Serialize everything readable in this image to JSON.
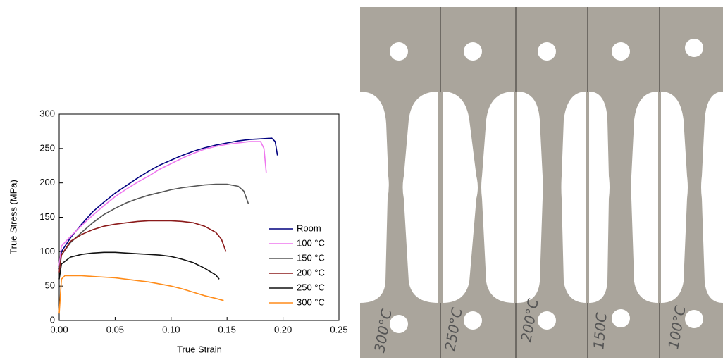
{
  "chart_data": {
    "type": "line",
    "x_label": "True Strain",
    "y_label": "True Stress (MPa)",
    "xlim": [
      0,
      0.25
    ],
    "xticks": [
      {
        "value": 0,
        "label": "0.00"
      },
      0.05,
      {
        "value": 0.1,
        "label": "0.10"
      },
      0.15,
      {
        "value": 0.2,
        "label": "0.20"
      },
      0.25
    ],
    "ylim": [
      0,
      300
    ],
    "yticks": [
      0,
      50,
      100,
      150,
      200,
      250,
      300
    ],
    "grid": false,
    "legend": "lower right",
    "series": [
      {
        "name": "Room",
        "color": "#00007f",
        "x": [
          0,
          0.002,
          0.01,
          0.02,
          0.03,
          0.04,
          0.05,
          0.06,
          0.07,
          0.08,
          0.09,
          0.1,
          0.11,
          0.12,
          0.13,
          0.14,
          0.15,
          0.16,
          0.17,
          0.18,
          0.19,
          0.193,
          0.195
        ],
        "values": [
          75,
          100,
          120,
          140,
          158,
          172,
          185,
          196,
          207,
          217,
          226,
          233,
          240,
          246,
          251,
          255,
          258,
          261,
          263,
          264,
          265,
          260,
          240
        ]
      },
      {
        "name": "100 °C",
        "color": "#ee77ee",
        "x": [
          0,
          0.002,
          0.01,
          0.02,
          0.03,
          0.04,
          0.05,
          0.06,
          0.07,
          0.08,
          0.09,
          0.1,
          0.11,
          0.12,
          0.13,
          0.14,
          0.15,
          0.16,
          0.17,
          0.18,
          0.183,
          0.185
        ],
        "values": [
          80,
          108,
          122,
          138,
          153,
          167,
          180,
          191,
          201,
          210,
          220,
          228,
          236,
          243,
          249,
          253,
          256,
          258,
          260,
          260,
          250,
          215
        ]
      },
      {
        "name": "150 °C",
        "color": "#555555",
        "x": [
          0,
          0.002,
          0.01,
          0.02,
          0.03,
          0.04,
          0.05,
          0.06,
          0.07,
          0.08,
          0.09,
          0.1,
          0.11,
          0.12,
          0.13,
          0.14,
          0.15,
          0.16,
          0.165,
          0.169
        ],
        "values": [
          75,
          95,
          113,
          128,
          142,
          154,
          163,
          171,
          177,
          182,
          186,
          190,
          193,
          195,
          197,
          198,
          198,
          195,
          188,
          170
        ]
      },
      {
        "name": "200 °C",
        "color": "#8b1a1a",
        "x": [
          0,
          0.002,
          0.01,
          0.02,
          0.03,
          0.04,
          0.05,
          0.06,
          0.07,
          0.08,
          0.09,
          0.1,
          0.11,
          0.12,
          0.13,
          0.14,
          0.145,
          0.149
        ],
        "values": [
          70,
          95,
          115,
          125,
          132,
          137,
          140,
          142,
          144,
          145,
          145,
          145,
          144,
          142,
          137,
          128,
          118,
          100
        ]
      },
      {
        "name": "250 °C",
        "color": "#111111",
        "x": [
          0,
          0.002,
          0.01,
          0.02,
          0.03,
          0.04,
          0.05,
          0.06,
          0.07,
          0.08,
          0.09,
          0.1,
          0.11,
          0.12,
          0.13,
          0.14,
          0.143
        ],
        "values": [
          60,
          82,
          92,
          96,
          98,
          99,
          99,
          98,
          97,
          96,
          95,
          93,
          89,
          84,
          76,
          66,
          60
        ]
      },
      {
        "name": "300 °C",
        "color": "#ff8c1a",
        "x": [
          0,
          0.002,
          0.005,
          0.02,
          0.03,
          0.04,
          0.05,
          0.06,
          0.07,
          0.08,
          0.09,
          0.1,
          0.11,
          0.12,
          0.13,
          0.14,
          0.147
        ],
        "values": [
          10,
          60,
          65,
          65,
          64,
          63,
          62,
          60,
          58,
          56,
          53,
          50,
          46,
          41,
          36,
          32,
          29
        ]
      }
    ]
  },
  "photo": {
    "specimen_labels": [
      "300°C",
      "250°C",
      "200°C",
      "150C",
      "100°C"
    ]
  }
}
